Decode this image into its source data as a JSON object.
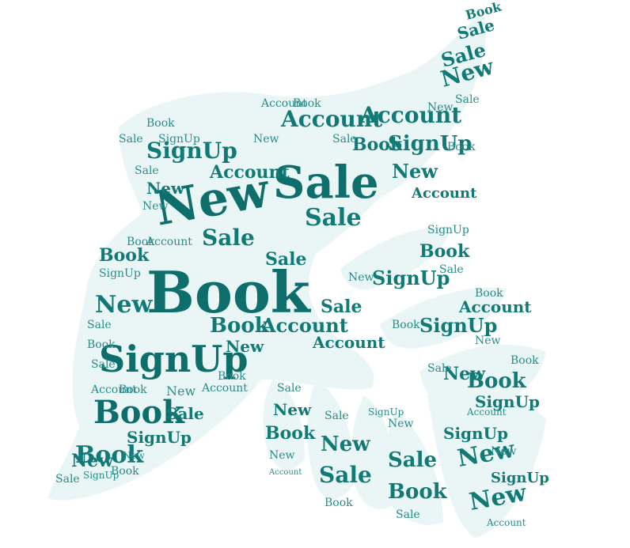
{
  "words": [
    "New",
    "Sale",
    "Book",
    "SignUp",
    "Account"
  ],
  "colors": {
    "background": "#ffffff",
    "silhouette": "#eaf6f6",
    "text": "#117a77"
  }
}
